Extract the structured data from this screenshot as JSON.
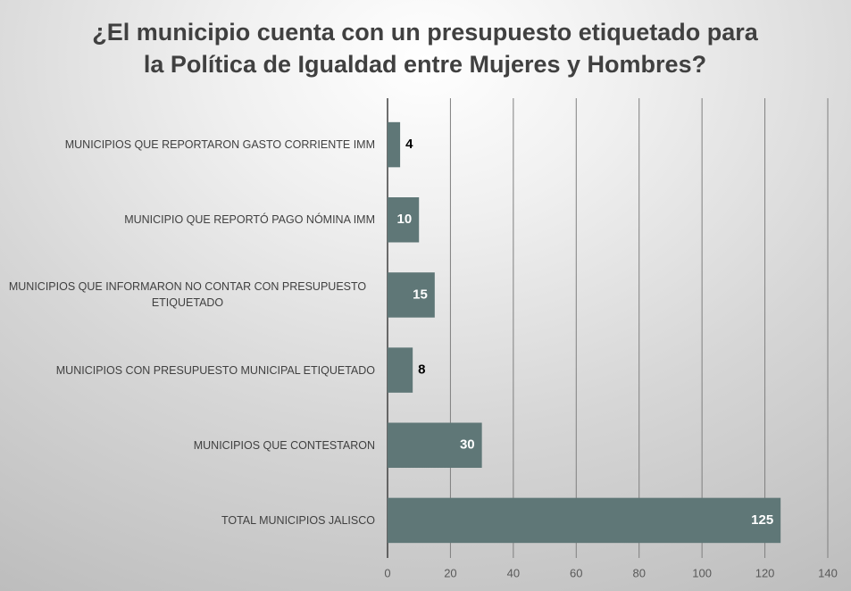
{
  "chart_data": {
    "type": "barh",
    "title": "¿El municipio cuenta con un presupuesto etiquetado para la Política de Igualdad entre Mujeres y Hombres?",
    "categories": [
      "MUNICIPIOS QUE REPORTARON GASTO CORRIENTE IMM",
      "MUNICIPIO QUE REPORTÓ PAGO NÓMINA IMM",
      "MUNICIPIOS QUE INFORMARON NO CONTAR CON PRESUPUESTO ETIQUETADO",
      "MUNICIPIOS CON PRESUPUESTO MUNICIPAL ETIQUETADO",
      "MUNICIPIOS QUE CONTESTARON",
      "TOTAL MUNICIPIOS JALISCO"
    ],
    "values": [
      4,
      10,
      15,
      8,
      30,
      125
    ],
    "color": "#5f7777",
    "xlim": [
      0,
      140
    ],
    "xticks": [
      0,
      20,
      40,
      60,
      80,
      100,
      120,
      140
    ],
    "grid": true
  }
}
